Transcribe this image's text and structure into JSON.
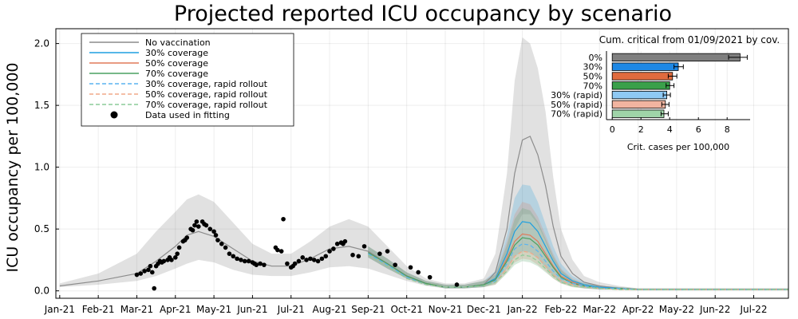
{
  "chart_data": [
    {
      "type": "line",
      "title": "Projected reported ICU occupancy by scenario",
      "xlabel": "",
      "ylabel": "ICU occupancy per 100,000",
      "ylim": [
        -0.06,
        2.12
      ],
      "grid": true,
      "legend_position": "top-left",
      "x_tick_labels": [
        "Jan-21",
        "Feb-21",
        "Mar-21",
        "Apr-21",
        "May-21",
        "Jun-21",
        "Jul-21",
        "Aug-21",
        "Sep-21",
        "Oct-21",
        "Nov-21",
        "Dec-21",
        "Jan-22",
        "Feb-22",
        "Mar-22",
        "Apr-22",
        "May-22",
        "Jun-22",
        "Jul-22"
      ],
      "y_ticks": [
        0.0,
        0.5,
        1.0,
        1.5,
        2.0
      ],
      "y_tick_labels": [
        "0.0",
        "0.5",
        "1.0",
        "1.5",
        "2.0"
      ],
      "legend": [
        {
          "label": "No vaccination",
          "color": "#8c8c8c",
          "style": "solid"
        },
        {
          "label": "30% coverage",
          "color": "#1f9fe0",
          "style": "solid"
        },
        {
          "label": "50% coverage",
          "color": "#e07a5a",
          "style": "solid"
        },
        {
          "label": "70% coverage",
          "color": "#4aa060",
          "style": "solid"
        },
        {
          "label": "30% coverage, rapid rollout",
          "color": "#5ab4f0",
          "style": "dashed"
        },
        {
          "label": "50% coverage, rapid rollout",
          "color": "#f0a888",
          "style": "dashed"
        },
        {
          "label": "70% coverage, rapid rollout",
          "color": "#8ccc98",
          "style": "dashed"
        },
        {
          "label": "Data used in fitting",
          "color": "#000000",
          "style": "marker"
        }
      ],
      "series": [
        {
          "name": "No vaccination",
          "color": "#8c8c8c",
          "x": [
            0,
            1,
            2,
            2.5,
            3,
            3.3,
            3.6,
            4,
            4.5,
            5,
            5.5,
            6,
            6.5,
            7,
            7.5,
            8,
            8.5,
            9,
            9.5,
            10,
            10.5,
            11,
            11.3,
            11.6,
            11.8,
            12,
            12.2,
            12.4,
            12.6,
            12.8,
            13,
            13.3,
            13.6,
            14,
            14.5,
            15,
            16,
            17,
            18,
            18.9
          ],
          "y": [
            0.04,
            0.08,
            0.14,
            0.24,
            0.36,
            0.45,
            0.48,
            0.44,
            0.34,
            0.24,
            0.2,
            0.2,
            0.26,
            0.34,
            0.36,
            0.32,
            0.22,
            0.12,
            0.06,
            0.03,
            0.03,
            0.05,
            0.15,
            0.5,
            0.95,
            1.22,
            1.25,
            1.1,
            0.85,
            0.52,
            0.28,
            0.14,
            0.07,
            0.04,
            0.02,
            0.01,
            0.01,
            0.01,
            0.01,
            0.01
          ],
          "band_lower": [
            0.03,
            0.05,
            0.08,
            0.12,
            0.18,
            0.22,
            0.25,
            0.23,
            0.17,
            0.13,
            0.12,
            0.12,
            0.15,
            0.19,
            0.2,
            0.18,
            0.13,
            0.08,
            0.04,
            0.02,
            0.02,
            0.03,
            0.08,
            0.25,
            0.5,
            0.62,
            0.62,
            0.54,
            0.4,
            0.25,
            0.14,
            0.08,
            0.04,
            0.02,
            0.01,
            0.005,
            0.005,
            0.005,
            0.005,
            0.005
          ],
          "band_upper": [
            0.06,
            0.14,
            0.3,
            0.48,
            0.64,
            0.74,
            0.78,
            0.72,
            0.55,
            0.38,
            0.3,
            0.3,
            0.4,
            0.52,
            0.58,
            0.52,
            0.36,
            0.2,
            0.1,
            0.06,
            0.06,
            0.1,
            0.3,
            0.95,
            1.7,
            2.05,
            2.0,
            1.8,
            1.45,
            0.92,
            0.5,
            0.25,
            0.12,
            0.07,
            0.04,
            0.02,
            0.02,
            0.02,
            0.02,
            0.02
          ]
        },
        {
          "name": "30% coverage",
          "color": "#1f9fe0",
          "x": [
            8.0,
            8.5,
            9,
            9.5,
            10,
            10.5,
            11,
            11.3,
            11.6,
            11.8,
            12,
            12.2,
            12.4,
            12.6,
            12.8,
            13,
            13.3,
            13.6,
            14,
            14.5,
            15,
            16,
            17,
            18,
            18.9
          ],
          "y": [
            0.31,
            0.22,
            0.12,
            0.06,
            0.03,
            0.03,
            0.05,
            0.1,
            0.3,
            0.48,
            0.56,
            0.55,
            0.48,
            0.36,
            0.24,
            0.14,
            0.08,
            0.05,
            0.03,
            0.02,
            0.01,
            0.01,
            0.01,
            0.01,
            0.01
          ],
          "band_lower": [
            0.27,
            0.18,
            0.1,
            0.05,
            0.02,
            0.02,
            0.03,
            0.06,
            0.18,
            0.28,
            0.32,
            0.31,
            0.26,
            0.19,
            0.12,
            0.07,
            0.04,
            0.02,
            0.01,
            0.01,
            0.005,
            0.005,
            0.005,
            0.005,
            0.005
          ],
          "band_upper": [
            0.36,
            0.26,
            0.15,
            0.08,
            0.05,
            0.05,
            0.08,
            0.16,
            0.45,
            0.75,
            0.86,
            0.85,
            0.72,
            0.54,
            0.36,
            0.22,
            0.12,
            0.07,
            0.04,
            0.03,
            0.02,
            0.02,
            0.02,
            0.02,
            0.02
          ]
        },
        {
          "name": "50% coverage",
          "color": "#e07a5a",
          "x": [
            8.0,
            8.5,
            9,
            9.5,
            10,
            10.5,
            11,
            11.3,
            11.6,
            11.8,
            12,
            12.2,
            12.4,
            12.6,
            12.8,
            13,
            13.3,
            13.6,
            14,
            14.5,
            15,
            16,
            17,
            18,
            18.9
          ],
          "y": [
            0.31,
            0.22,
            0.12,
            0.06,
            0.03,
            0.03,
            0.05,
            0.09,
            0.26,
            0.4,
            0.46,
            0.45,
            0.4,
            0.3,
            0.2,
            0.12,
            0.07,
            0.04,
            0.02,
            0.02,
            0.01,
            0.01,
            0.01,
            0.01,
            0.01
          ],
          "band_lower": [
            0.27,
            0.18,
            0.1,
            0.05,
            0.02,
            0.02,
            0.03,
            0.05,
            0.15,
            0.23,
            0.26,
            0.25,
            0.21,
            0.16,
            0.1,
            0.06,
            0.03,
            0.02,
            0.01,
            0.01,
            0.005,
            0.005,
            0.005,
            0.005,
            0.005
          ],
          "band_upper": [
            0.36,
            0.26,
            0.15,
            0.08,
            0.05,
            0.05,
            0.08,
            0.14,
            0.4,
            0.62,
            0.72,
            0.7,
            0.6,
            0.45,
            0.3,
            0.18,
            0.1,
            0.06,
            0.04,
            0.03,
            0.02,
            0.02,
            0.02,
            0.02,
            0.02
          ]
        },
        {
          "name": "70% coverage",
          "color": "#4aa060",
          "x": [
            8.0,
            8.5,
            9,
            9.5,
            10,
            10.5,
            11,
            11.3,
            11.6,
            11.8,
            12,
            12.2,
            12.4,
            12.6,
            12.8,
            13,
            13.3,
            13.6,
            14,
            14.5,
            15,
            16,
            17,
            18,
            18.9
          ],
          "y": [
            0.31,
            0.22,
            0.12,
            0.06,
            0.03,
            0.03,
            0.05,
            0.09,
            0.24,
            0.37,
            0.43,
            0.42,
            0.37,
            0.28,
            0.19,
            0.11,
            0.06,
            0.04,
            0.02,
            0.02,
            0.01,
            0.01,
            0.01,
            0.01,
            0.01
          ],
          "band_lower": [
            0.27,
            0.18,
            0.1,
            0.05,
            0.02,
            0.02,
            0.03,
            0.05,
            0.14,
            0.21,
            0.24,
            0.23,
            0.2,
            0.15,
            0.1,
            0.06,
            0.03,
            0.02,
            0.01,
            0.01,
            0.005,
            0.005,
            0.005,
            0.005,
            0.005
          ],
          "band_upper": [
            0.36,
            0.26,
            0.15,
            0.08,
            0.05,
            0.05,
            0.08,
            0.13,
            0.37,
            0.58,
            0.67,
            0.65,
            0.56,
            0.42,
            0.28,
            0.17,
            0.09,
            0.06,
            0.04,
            0.03,
            0.02,
            0.02,
            0.02,
            0.02,
            0.02
          ]
        },
        {
          "name": "30% coverage, rapid rollout",
          "color": "#5ab4f0",
          "dashed": true,
          "x": [
            8.0,
            8.5,
            9,
            9.5,
            10,
            10.5,
            11,
            11.3,
            11.6,
            11.8,
            12,
            12.2,
            12.4,
            12.6,
            12.8,
            13,
            13.3,
            13.6,
            14,
            14.5,
            15,
            16,
            17,
            18,
            18.9
          ],
          "y": [
            0.3,
            0.21,
            0.11,
            0.05,
            0.03,
            0.03,
            0.04,
            0.08,
            0.22,
            0.34,
            0.38,
            0.37,
            0.32,
            0.24,
            0.16,
            0.1,
            0.06,
            0.04,
            0.02,
            0.02,
            0.01,
            0.01,
            0.01,
            0.01,
            0.01
          ]
        },
        {
          "name": "50% coverage, rapid rollout",
          "color": "#f0a888",
          "dashed": true,
          "x": [
            8.0,
            8.5,
            9,
            9.5,
            10,
            10.5,
            11,
            11.3,
            11.6,
            11.8,
            12,
            12.2,
            12.4,
            12.6,
            12.8,
            13,
            13.3,
            13.6,
            14,
            14.5,
            15,
            16,
            17,
            18,
            18.9
          ],
          "y": [
            0.29,
            0.2,
            0.1,
            0.05,
            0.03,
            0.03,
            0.04,
            0.07,
            0.18,
            0.28,
            0.32,
            0.31,
            0.27,
            0.2,
            0.13,
            0.08,
            0.05,
            0.03,
            0.02,
            0.01,
            0.01,
            0.01,
            0.01,
            0.01,
            0.01
          ]
        },
        {
          "name": "70% coverage, rapid rollout",
          "color": "#8ccc98",
          "dashed": true,
          "x": [
            8.0,
            8.5,
            9,
            9.5,
            10,
            10.5,
            11,
            11.3,
            11.6,
            11.8,
            12,
            12.2,
            12.4,
            12.6,
            12.8,
            13,
            13.3,
            13.6,
            14,
            14.5,
            15,
            16,
            17,
            18,
            18.9
          ],
          "y": [
            0.29,
            0.2,
            0.1,
            0.05,
            0.03,
            0.03,
            0.04,
            0.07,
            0.16,
            0.25,
            0.29,
            0.28,
            0.24,
            0.18,
            0.12,
            0.07,
            0.04,
            0.03,
            0.02,
            0.01,
            0.01,
            0.01,
            0.01,
            0.01,
            0.01
          ]
        }
      ],
      "scatter": {
        "name": "Data used in fitting",
        "x": [
          2.0,
          2.1,
          2.2,
          2.3,
          2.35,
          2.4,
          2.5,
          2.55,
          2.6,
          2.65,
          2.7,
          2.8,
          2.85,
          2.9,
          3.0,
          3.05,
          3.1,
          3.2,
          3.25,
          3.3,
          3.4,
          3.45,
          3.5,
          3.55,
          3.6,
          3.7,
          3.75,
          3.8,
          3.9,
          4.0,
          4.05,
          4.1,
          4.2,
          4.3,
          4.4,
          4.5,
          4.6,
          4.7,
          4.8,
          4.9,
          5.0,
          5.05,
          5.1,
          5.2,
          5.3,
          5.6,
          5.65,
          5.75,
          5.8,
          5.9,
          6.0,
          6.05,
          6.1,
          6.2,
          6.3,
          6.4,
          6.5,
          6.6,
          6.7,
          6.8,
          6.9,
          7.0,
          7.1,
          7.2,
          7.3,
          7.35,
          7.4,
          7.6,
          7.75,
          7.9,
          8.3,
          8.5,
          8.7,
          9.1,
          9.3,
          9.6,
          10.3,
          2.45
        ],
        "y": [
          0.13,
          0.14,
          0.16,
          0.17,
          0.2,
          0.15,
          0.2,
          0.22,
          0.24,
          0.23,
          0.24,
          0.25,
          0.27,
          0.25,
          0.27,
          0.3,
          0.35,
          0.4,
          0.41,
          0.43,
          0.5,
          0.49,
          0.53,
          0.56,
          0.52,
          0.56,
          0.54,
          0.53,
          0.5,
          0.48,
          0.45,
          0.41,
          0.38,
          0.35,
          0.3,
          0.28,
          0.26,
          0.25,
          0.24,
          0.24,
          0.23,
          0.22,
          0.21,
          0.22,
          0.21,
          0.35,
          0.33,
          0.32,
          0.58,
          0.22,
          0.19,
          0.2,
          0.22,
          0.24,
          0.27,
          0.25,
          0.26,
          0.25,
          0.24,
          0.26,
          0.28,
          0.32,
          0.34,
          0.38,
          0.39,
          0.38,
          0.4,
          0.29,
          0.28,
          0.36,
          0.3,
          0.32,
          0.21,
          0.19,
          0.15,
          0.11,
          0.05,
          0.02
        ]
      }
    },
    {
      "type": "bar",
      "orientation": "horizontal",
      "title": "Cum. critical from 01/09/2021 by cov.",
      "xlabel": "Crit. cases per 100,000",
      "xlim": [
        -0.4,
        9.6
      ],
      "x_ticks": [
        0,
        2,
        4,
        6,
        8
      ],
      "categories": [
        "0%",
        "30%",
        "50%",
        "70%",
        "30% (rapid)",
        "50% (rapid)",
        "70% (rapid)"
      ],
      "values": [
        8.9,
        4.6,
        4.2,
        4.0,
        3.8,
        3.7,
        3.6
      ],
      "error_upper": [
        9.4,
        4.95,
        4.5,
        4.3,
        4.05,
        3.95,
        3.9
      ],
      "error_lower": [
        8.1,
        4.3,
        3.9,
        3.75,
        3.55,
        3.45,
        3.4
      ],
      "colors": [
        "#7f7f7f",
        "#1e88e5",
        "#e06b3e",
        "#3aa04a",
        "#8ec9f4",
        "#f2b4a0",
        "#9fd4a8"
      ]
    }
  ]
}
